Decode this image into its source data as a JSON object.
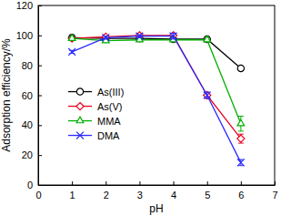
{
  "chart_data": {
    "type": "line",
    "x_label": "pH",
    "y_label": "Adsorption efficiency/%",
    "xlim": [
      0,
      7
    ],
    "xticks": [
      0,
      1,
      2,
      3,
      4,
      5,
      6,
      7
    ],
    "ylim": [
      0,
      120
    ],
    "yticks": [
      0,
      20,
      40,
      60,
      80,
      100,
      120
    ],
    "legend": "left",
    "grid": false,
    "series": [
      {
        "name": "As(III)",
        "color": "#000000",
        "marker": "circle",
        "line_style": "solid",
        "x": [
          1,
          2,
          3,
          4,
          5,
          6
        ],
        "values": [
          98.5,
          98,
          98,
          97.5,
          97.5,
          78
        ],
        "errors": [
          1,
          1,
          1,
          1,
          1,
          1
        ]
      },
      {
        "name": "As(V)",
        "color": "#e8001c",
        "marker": "diamond",
        "line_style": "solid",
        "x": [
          1,
          2,
          3,
          4,
          5,
          6
        ],
        "values": [
          98,
          99,
          100,
          100,
          60,
          31
        ],
        "errors": [
          1,
          1,
          1,
          1,
          2,
          3
        ]
      },
      {
        "name": "MMA",
        "color": "#00b000",
        "marker": "triangle",
        "line_style": "solid",
        "x": [
          1,
          2,
          3,
          4,
          5,
          6
        ],
        "values": [
          98,
          96.5,
          97,
          97,
          97,
          41
        ],
        "errors": [
          1,
          1,
          1,
          1,
          1,
          5
        ]
      },
      {
        "name": "DMA",
        "color": "#2a2aff",
        "marker": "x",
        "line_style": "solid",
        "x": [
          1,
          2,
          3,
          4,
          5,
          6
        ],
        "values": [
          89,
          98.5,
          99.5,
          99.5,
          60,
          15
        ],
        "errors": [
          1,
          1,
          1,
          2,
          2,
          2
        ]
      }
    ]
  }
}
